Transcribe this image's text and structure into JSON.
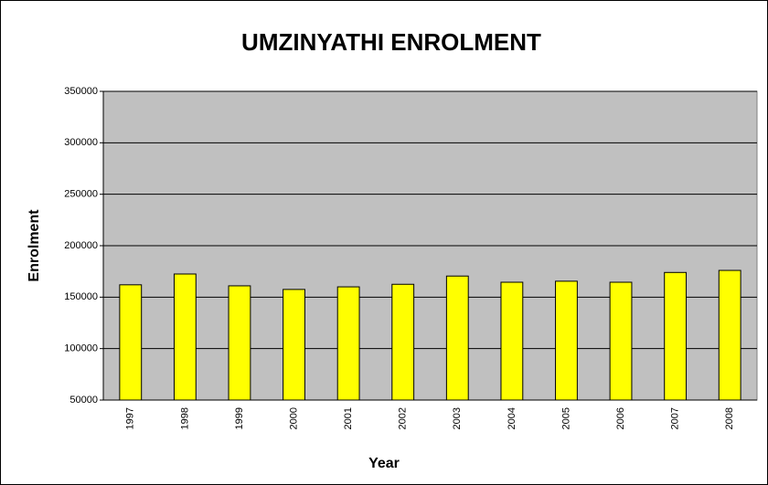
{
  "chart_data": {
    "type": "bar",
    "title": "UMZINYATHI ENROLMENT",
    "x_label": "Year",
    "y_label": "Enrolment",
    "categories": [
      "1997",
      "1998",
      "1999",
      "2000",
      "2001",
      "2002",
      "2003",
      "2004",
      "2005",
      "2006",
      "2007",
      "2008"
    ],
    "values": [
      162000,
      172500,
      161000,
      157500,
      160000,
      162500,
      170500,
      164500,
      165500,
      164500,
      174000,
      176000
    ],
    "color": "#ffff00",
    "ylim": [
      50000,
      350000
    ],
    "yticks": [
      50000,
      100000,
      150000,
      200000,
      250000,
      300000,
      350000
    ],
    "grid": true
  }
}
